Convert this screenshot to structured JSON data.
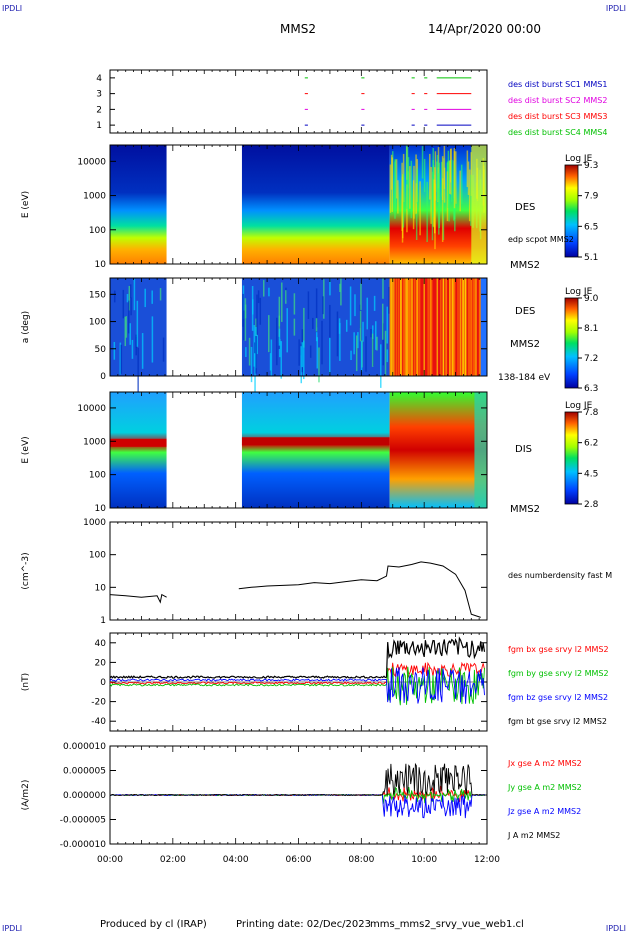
{
  "header": {
    "corner_tl": "IPDLI",
    "corner_tr": "IPDLI",
    "corner_bl": "IPDLI",
    "corner_br": "IPDLI",
    "spacecraft": "MMS2",
    "date": "14/Apr/2020 00:00"
  },
  "footer": {
    "credit": "Produced by cl (IRAP)",
    "printing": "Printing date: 02/Dec/2023",
    "file": "mms_mms2_srvy_vue_web1.cl"
  },
  "colors": {
    "red": "#ff0000",
    "green": "#00c000",
    "blue": "#0000ff",
    "magenta": "#e000e0",
    "black": "#000000",
    "label_blue": "#0000c0"
  },
  "chart_data": [
    {
      "type": "line",
      "id": "burst",
      "ylim": [
        0.5,
        4.5
      ],
      "yticks": [
        "1",
        "2",
        "3",
        "4"
      ],
      "series": [
        {
          "name": "des dist burst SC1 MMS1",
          "color": "#0000c0",
          "row": 1
        },
        {
          "name": "des dist burst SC2 MMS2",
          "color": "#e000e0",
          "row": 2
        },
        {
          "name": "des dist burst SC3 MMS3",
          "color": "#ff0000",
          "row": 3
        },
        {
          "name": "des dist burst SC4 MMS4",
          "color": "#00c000",
          "row": 4
        }
      ],
      "intervals_hours": [
        [
          6.2,
          6.3
        ],
        [
          8.0,
          8.1
        ],
        [
          9.6,
          9.7
        ],
        [
          10.0,
          10.1
        ],
        [
          10.4,
          11.5
        ]
      ]
    },
    {
      "type": "heatmap",
      "id": "des_energy",
      "ylabel": "E (eV)",
      "yscale": "log",
      "ylim": [
        10,
        30000
      ],
      "yticks": [
        "10",
        "100",
        "1000",
        "10000"
      ],
      "label": "DES",
      "sublabel": "edp scpot MMS2",
      "probe": "MMS2",
      "colorbar": {
        "title": "Log JE",
        "ticks": [
          "9.3",
          "7.9",
          "6.5",
          "5.1"
        ]
      },
      "gaps_hours": [
        [
          1.8,
          4.2
        ]
      ]
    },
    {
      "type": "heatmap",
      "id": "des_pitch",
      "ylabel": "a (deg)",
      "ylim": [
        0,
        180
      ],
      "yticks": [
        "0",
        "50",
        "100",
        "150"
      ],
      "label": "DES",
      "probe": "MMS2",
      "energy_range": "138-184 eV",
      "colorbar": {
        "title": "Log JE",
        "ticks": [
          "9.0",
          "8.1",
          "7.2",
          "6.3"
        ]
      },
      "gaps_hours": [
        [
          1.8,
          4.2
        ]
      ]
    },
    {
      "type": "heatmap",
      "id": "dis_energy",
      "ylabel": "E (eV)",
      "yscale": "log",
      "ylim": [
        10,
        30000
      ],
      "yticks": [
        "10",
        "100",
        "1000",
        "10000"
      ],
      "label": "DIS",
      "probe": "MMS2",
      "colorbar": {
        "title": "Log JE",
        "ticks": [
          "7.8",
          "6.2",
          "4.5",
          "2.8"
        ]
      },
      "gaps_hours": [
        [
          1.8,
          4.2
        ]
      ]
    },
    {
      "type": "line",
      "id": "density",
      "ylabel": "(cm^-3)",
      "yscale": "log",
      "ylim": [
        1,
        1000
      ],
      "yticks": [
        "1",
        "10",
        "100",
        "1000"
      ],
      "series": [
        {
          "name": "des numberdensity fast M",
          "color": "#000000"
        }
      ],
      "points": [
        [
          0.0,
          6
        ],
        [
          0.5,
          5.5
        ],
        [
          1.0,
          5
        ],
        [
          1.5,
          5.5
        ],
        [
          1.6,
          3.5
        ],
        [
          1.65,
          6
        ],
        [
          1.8,
          5
        ],
        [
          4.1,
          9
        ],
        [
          4.5,
          10
        ],
        [
          5.0,
          11
        ],
        [
          5.5,
          11.5
        ],
        [
          6.0,
          12
        ],
        [
          6.5,
          14
        ],
        [
          7.0,
          13
        ],
        [
          7.5,
          15
        ],
        [
          8.0,
          17
        ],
        [
          8.5,
          16
        ],
        [
          8.8,
          22
        ],
        [
          8.85,
          45
        ],
        [
          9.2,
          42
        ],
        [
          9.6,
          50
        ],
        [
          9.9,
          60
        ],
        [
          10.2,
          55
        ],
        [
          10.6,
          45
        ],
        [
          11.0,
          25
        ],
        [
          11.3,
          8
        ],
        [
          11.5,
          1.5
        ],
        [
          11.8,
          1.2
        ]
      ]
    },
    {
      "type": "line",
      "id": "fgm",
      "ylabel": "(nT)",
      "ylim": [
        -50,
        50
      ],
      "yticks": [
        "-40",
        "-20",
        "0",
        "20",
        "40"
      ],
      "series": [
        {
          "name": "fgm bx gse srvy l2 MMS2",
          "color": "#ff0000"
        },
        {
          "name": "fgm by gse srvy l2 MMS2",
          "color": "#00c000"
        },
        {
          "name": "fgm bz gse srvy l2 MMS2",
          "color": "#0000ff"
        },
        {
          "name": "fgm bt gse srvy l2 MMS2",
          "color": "#000000"
        }
      ]
    },
    {
      "type": "line",
      "id": "current",
      "ylabel": "(A/m2)",
      "ylim": [
        -1e-05,
        1e-05
      ],
      "yticks": [
        "-0.000010",
        "-0.000005",
        "0.000000",
        "0.000005",
        "0.000010"
      ],
      "series": [
        {
          "name": "Jx gse A m2 MMS2",
          "color": "#ff0000"
        },
        {
          "name": "Jy gse A m2 MMS2",
          "color": "#00c000"
        },
        {
          "name": "Jz gse A m2 MMS2",
          "color": "#0000ff"
        },
        {
          "name": "J A m2 MMS2",
          "color": "#000000"
        }
      ]
    }
  ],
  "time_axis": {
    "ticks": [
      "00:00",
      "02:00",
      "04:00",
      "06:00",
      "08:00",
      "10:00",
      "12:00"
    ],
    "range_hours": [
      0,
      12
    ]
  }
}
